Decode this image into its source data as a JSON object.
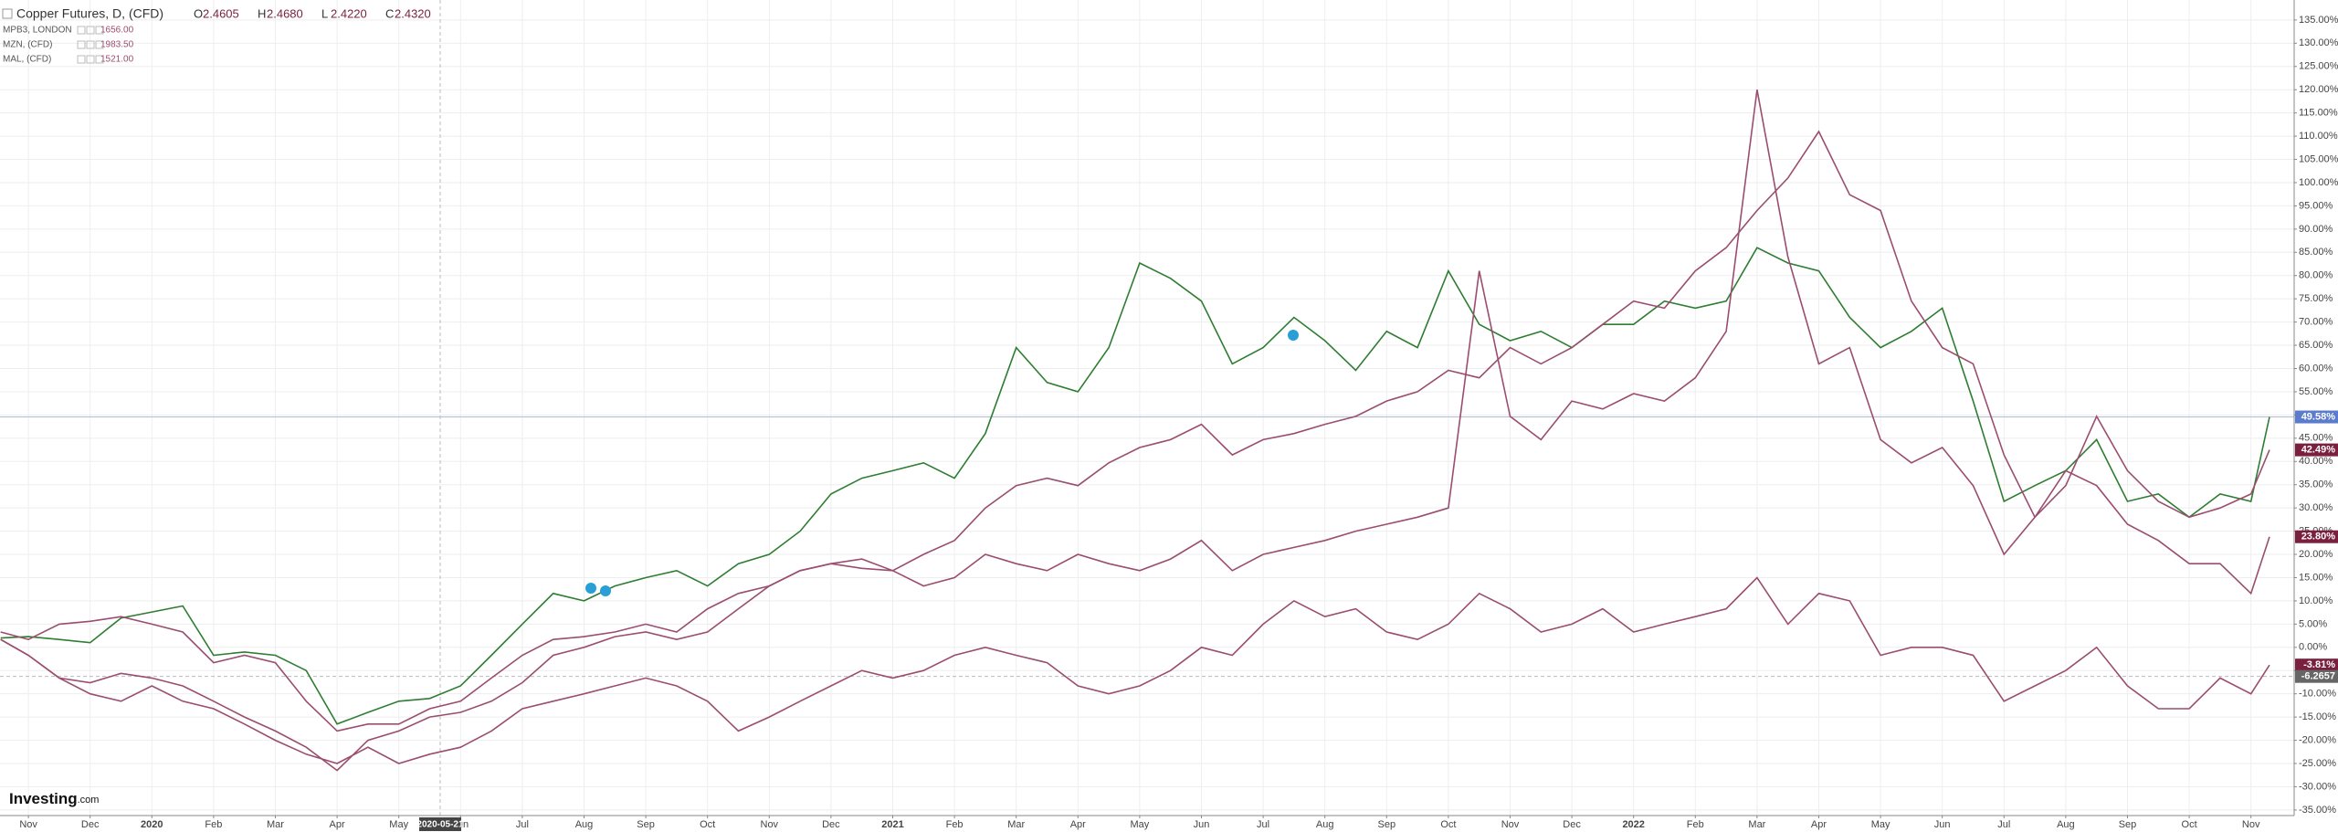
{
  "chart_data": {
    "type": "line",
    "title": "Copper Futures, D, (CFD)",
    "ohlc": [
      {
        "key": "O",
        "value": "2.4605"
      },
      {
        "key": "H",
        "value": "2.4680"
      },
      {
        "key": "L",
        "value": "2.4220"
      },
      {
        "key": "C",
        "value": "2.4320"
      }
    ],
    "logo": {
      "name": "Investing",
      "suffix": ".com"
    },
    "x": [
      -0.45,
      0,
      0.5,
      1,
      1.5,
      2,
      2.5,
      3,
      3.5,
      4,
      4.5,
      5,
      5.5,
      6,
      6.5,
      7,
      7.5,
      8,
      8.5,
      9,
      9.5,
      10,
      10.5,
      11,
      11.5,
      12,
      12.5,
      13,
      13.5,
      14,
      14.5,
      15,
      15.5,
      16,
      16.5,
      17,
      17.5,
      18,
      18.5,
      19,
      19.5,
      20,
      20.5,
      21,
      21.5,
      22,
      22.5,
      23,
      23.5,
      24,
      24.5,
      25,
      25.5,
      26,
      26.5,
      27,
      27.5,
      28,
      28.5,
      29,
      29.5,
      30,
      30.5,
      31,
      31.5,
      32,
      32.5,
      33,
      33.5,
      34,
      34.5,
      35,
      35.5,
      36,
      36.3
    ],
    "series": [
      {
        "color": "#2e7d32",
        "values": [
          2,
          2.3,
          1.7,
          1,
          6.3,
          7.6,
          8.9,
          -1.7,
          -1,
          -1.7,
          -5,
          -16.5,
          -14,
          -11.6,
          -11,
          -8.3,
          -1.7,
          5,
          11.6,
          10,
          13.2,
          15,
          16.5,
          13.2,
          18,
          20,
          25,
          33,
          36.4,
          38,
          39.7,
          36.4,
          46,
          64.5,
          57,
          55,
          64.5,
          82.7,
          79.4,
          74.5,
          61,
          64.5,
          71,
          66,
          59.6,
          68,
          64.5,
          81,
          69.5,
          66,
          68,
          64.5,
          69.5,
          69.5,
          74.5,
          73,
          74.5,
          86,
          82.7,
          81,
          71,
          64.5,
          68,
          73,
          53,
          31.4,
          34.8,
          38,
          44.7,
          31.4,
          33,
          28,
          33,
          31.4,
          49.58
        ]
      },
      {
        "name": "MPB3, LONDON",
        "legend_value": "1656.00",
        "color": "#9a4d6e",
        "values": [
          1.7,
          -1.7,
          -6.6,
          -10,
          -11.6,
          -8.3,
          -11.6,
          -13.2,
          -16.5,
          -20,
          -23,
          -25,
          -21.5,
          -25,
          -23,
          -21.5,
          -18,
          -13.2,
          -11.6,
          -10,
          -8.3,
          -6.6,
          -8.3,
          -11.6,
          -18,
          -15,
          -11.6,
          -8.3,
          -5,
          -6.6,
          -5,
          -1.7,
          0,
          -1.7,
          -3.3,
          -8.3,
          -10,
          -8.3,
          -5,
          0,
          -1.7,
          5,
          10,
          6.6,
          8.3,
          3.3,
          1.7,
          5,
          11.6,
          8.3,
          3.3,
          5,
          8.3,
          3.3,
          5,
          6.6,
          8.3,
          15,
          5,
          11.6,
          10,
          -1.7,
          0,
          0,
          -1.7,
          -11.6,
          -8.3,
          -5,
          0,
          -8.3,
          -13.2,
          -13.2,
          -6.6,
          -10,
          -3.81
        ]
      },
      {
        "name": "MZN, (CFD)",
        "legend_value": "1983.50",
        "color": "#9a4d6e",
        "values": [
          3.3,
          1.7,
          5,
          5.6,
          6.6,
          5,
          3.3,
          -3.3,
          -1.7,
          -3.3,
          -11.6,
          -18,
          -16.5,
          -16.5,
          -13.2,
          -11.6,
          -6.6,
          -1.7,
          1.7,
          2.3,
          3.3,
          5,
          3.3,
          8.3,
          11.6,
          13.2,
          16.5,
          18,
          19,
          16.5,
          13.2,
          15,
          20,
          18,
          16.5,
          20,
          18,
          16.5,
          19,
          23,
          16.5,
          20,
          21.5,
          23,
          25,
          26.5,
          28,
          30,
          81,
          49.7,
          44.7,
          53,
          51.3,
          54.6,
          53,
          58,
          68,
          120,
          84,
          61,
          64.5,
          44.7,
          39.7,
          43,
          34.8,
          20,
          28,
          38,
          34.8,
          26.5,
          23,
          18,
          18,
          11.6,
          23.8
        ]
      },
      {
        "name": "MAL, (CFD)",
        "legend_value": "1521.00",
        "color": "#9a4d6e",
        "values": [
          1.7,
          -1.7,
          -6.6,
          -7.6,
          -5.6,
          -6.6,
          -8.3,
          -11.6,
          -15,
          -18,
          -21.5,
          -26.5,
          -20,
          -18,
          -15,
          -14,
          -11.6,
          -7.6,
          -1.7,
          0,
          2.3,
          3.3,
          1.7,
          3.3,
          8.3,
          13.2,
          16.5,
          18,
          17,
          16.5,
          20,
          23,
          30,
          34.8,
          36.4,
          34.8,
          39.7,
          43,
          44.7,
          48,
          41.4,
          44.7,
          46,
          48,
          49.7,
          53,
          55,
          59.6,
          58,
          64.5,
          61,
          64.5,
          69.5,
          74.5,
          73,
          81,
          86,
          94,
          101,
          111,
          97.4,
          94,
          74.5,
          64.5,
          61,
          41.4,
          28,
          34.8,
          49.7,
          38,
          31.4,
          28,
          30,
          33,
          42.49
        ]
      }
    ],
    "price_badges": [
      {
        "value": 49.58,
        "label": "49.58%",
        "color": "#5b7bcc"
      },
      {
        "value": 42.49,
        "label": "42.49%",
        "color": "#7a1f3d"
      },
      {
        "value": 23.8,
        "label": "23.80%",
        "color": "#7a1f3d"
      },
      {
        "value": -3.81,
        "label": "-3.81%",
        "color": "#7a1f3d"
      }
    ],
    "crosshair": {
      "x": {
        "value": 6.67,
        "label": "2020-05-21"
      },
      "y": -6.2657,
      "color": "#666666"
    },
    "xlim": [
      -0.46,
      36.7
    ],
    "xticks": [
      {
        "value": 0,
        "label": "Nov"
      },
      {
        "value": 1,
        "label": "Dec"
      },
      {
        "value": 2,
        "label": "2020"
      },
      {
        "value": 3,
        "label": "Feb"
      },
      {
        "value": 4,
        "label": "Mar"
      },
      {
        "value": 5,
        "label": "Apr"
      },
      {
        "value": 6,
        "label": "May"
      },
      {
        "value": 7,
        "label": "Jun"
      },
      {
        "value": 8,
        "label": "Jul"
      },
      {
        "value": 9,
        "label": "Aug"
      },
      {
        "value": 10,
        "label": "Sep"
      },
      {
        "value": 11,
        "label": "Oct"
      },
      {
        "value": 12,
        "label": "Nov"
      },
      {
        "value": 13,
        "label": "Dec"
      },
      {
        "value": 14,
        "label": "2021"
      },
      {
        "value": 15,
        "label": "Feb"
      },
      {
        "value": 16,
        "label": "Mar"
      },
      {
        "value": 17,
        "label": "Apr"
      },
      {
        "value": 18,
        "label": "May"
      },
      {
        "value": 19,
        "label": "Jun"
      },
      {
        "value": 20,
        "label": "Jul"
      },
      {
        "value": 21,
        "label": "Aug"
      },
      {
        "value": 22,
        "label": "Sep"
      },
      {
        "value": 23,
        "label": "Oct"
      },
      {
        "value": 24,
        "label": "Nov"
      },
      {
        "value": 25,
        "label": "Dec"
      },
      {
        "value": 26,
        "label": "2022"
      },
      {
        "value": 27,
        "label": "Feb"
      },
      {
        "value": 28,
        "label": "Mar"
      },
      {
        "value": 29,
        "label": "Apr"
      },
      {
        "value": 30,
        "label": "May"
      },
      {
        "value": 31,
        "label": "Jun"
      },
      {
        "value": 32,
        "label": "Jul"
      },
      {
        "value": 33,
        "label": "Aug"
      },
      {
        "value": 34,
        "label": "Sep"
      },
      {
        "value": 35,
        "label": "Oct"
      },
      {
        "value": 36,
        "label": "Nov"
      }
    ],
    "ylim": [
      -36.2,
      139.3
    ],
    "yticks": [
      {
        "value": -35,
        "label": "-35.00%"
      },
      {
        "value": -30,
        "label": "-30.00%"
      },
      {
        "value": -25,
        "label": "-25.00%"
      },
      {
        "value": -20,
        "label": "-20.00%"
      },
      {
        "value": -15,
        "label": "-15.00%"
      },
      {
        "value": -10,
        "label": "-10.00%"
      },
      {
        "value": -5,
        "label": "-5.00%"
      },
      {
        "value": 0,
        "label": "0.00%"
      },
      {
        "value": 5,
        "label": "5.00%"
      },
      {
        "value": 10,
        "label": "10.00%"
      },
      {
        "value": 15,
        "label": "15.00%"
      },
      {
        "value": 20,
        "label": "20.00%"
      },
      {
        "value": 25,
        "label": "25.00%"
      },
      {
        "value": 30,
        "label": "30.00%"
      },
      {
        "value": 35,
        "label": "35.00%"
      },
      {
        "value": 40,
        "label": "40.00%"
      },
      {
        "value": 45,
        "label": "45.00%"
      },
      {
        "value": 50,
        "label": "50.00%"
      },
      {
        "value": 55,
        "label": "55.00%"
      },
      {
        "value": 60,
        "label": "60.00%"
      },
      {
        "value": 65,
        "label": "65.00%"
      },
      {
        "value": 70,
        "label": "70.00%"
      },
      {
        "value": 75,
        "label": "75.00%"
      },
      {
        "value": 80,
        "label": "80.00%"
      },
      {
        "value": 85,
        "label": "85.00%"
      },
      {
        "value": 90,
        "label": "90.00%"
      },
      {
        "value": 95,
        "label": "95.00%"
      },
      {
        "value": 100,
        "label": "100.00%"
      },
      {
        "value": 105,
        "label": "105.00%"
      },
      {
        "value": 110,
        "label": "110.00%"
      },
      {
        "value": 115,
        "label": "115.00%"
      },
      {
        "value": 120,
        "label": "120.00%"
      },
      {
        "value": 125,
        "label": "125.00%"
      },
      {
        "value": 130,
        "label": "130.00%"
      },
      {
        "value": 135,
        "label": "135.00%"
      }
    ],
    "grid": true
  }
}
